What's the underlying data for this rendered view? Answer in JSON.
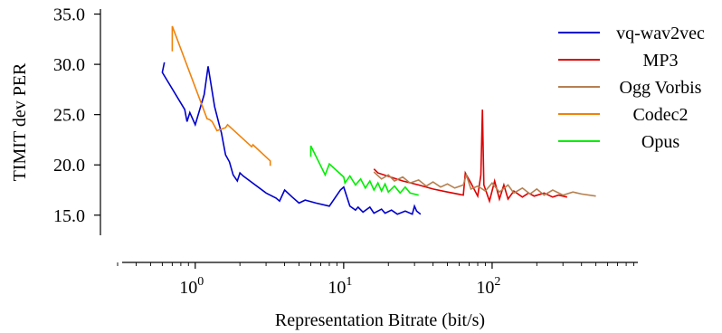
{
  "chart_data": {
    "type": "line",
    "xlabel": "Representation Bitrate (bit/s)",
    "ylabel": "TIMIT dev PER",
    "xscale": "log",
    "xlim": [
      0.3,
      1000
    ],
    "ylim": [
      13.0,
      35.5
    ],
    "grid": false,
    "legend_position": "top-right",
    "yticks": [
      15.0,
      20.0,
      25.0,
      30.0,
      35.0
    ],
    "ytick_labels": [
      "15.0",
      "20.0",
      "25.0",
      "30.0",
      "35.0"
    ],
    "xticks": [
      1,
      10,
      100
    ],
    "xtick_labels": [
      {
        "base": "10",
        "exp": "0"
      },
      {
        "base": "10",
        "exp": "1"
      },
      {
        "base": "10",
        "exp": "2"
      }
    ],
    "series": [
      {
        "name": "vq-wav2vec",
        "color": "#0000cc",
        "points": [
          [
            0.62,
            30.2
          ],
          [
            0.6,
            29.2
          ],
          [
            0.85,
            25.5
          ],
          [
            0.88,
            24.3
          ],
          [
            0.92,
            25.2
          ],
          [
            1.0,
            24.0
          ],
          [
            1.15,
            27.0
          ],
          [
            1.22,
            29.8
          ],
          [
            1.35,
            25.8
          ],
          [
            1.45,
            24.0
          ],
          [
            1.5,
            23.2
          ],
          [
            1.6,
            21.0
          ],
          [
            1.7,
            20.3
          ],
          [
            1.8,
            19.0
          ],
          [
            1.92,
            18.4
          ],
          [
            2.0,
            19.2
          ],
          [
            2.1,
            18.9
          ],
          [
            3.0,
            17.2
          ],
          [
            3.5,
            16.7
          ],
          [
            3.7,
            16.4
          ],
          [
            4.0,
            17.5
          ],
          [
            4.5,
            16.8
          ],
          [
            5.0,
            16.2
          ],
          [
            5.5,
            16.5
          ],
          [
            6.5,
            16.2
          ],
          [
            8.0,
            15.9
          ],
          [
            9.5,
            17.5
          ],
          [
            10.0,
            17.8
          ],
          [
            11.0,
            15.9
          ],
          [
            12.0,
            15.5
          ],
          [
            12.5,
            15.8
          ],
          [
            13.5,
            15.3
          ],
          [
            15.0,
            15.8
          ],
          [
            16.0,
            15.2
          ],
          [
            18.0,
            15.6
          ],
          [
            19.0,
            15.2
          ],
          [
            21.0,
            15.5
          ],
          [
            23.0,
            15.1
          ],
          [
            26.0,
            15.4
          ],
          [
            29.0,
            15.1
          ],
          [
            30.0,
            15.9
          ],
          [
            31.0,
            15.4
          ],
          [
            33.0,
            15.1
          ]
        ]
      },
      {
        "name": "MP3",
        "color": "#dd0000",
        "points": [
          [
            16.0,
            19.6
          ],
          [
            17.0,
            19.2
          ],
          [
            25.0,
            18.4
          ],
          [
            32.0,
            18.0
          ],
          [
            40.0,
            17.6
          ],
          [
            50.0,
            17.3
          ],
          [
            64.0,
            17.0
          ],
          [
            66.0,
            19.2
          ],
          [
            72.0,
            18.2
          ],
          [
            80.0,
            16.9
          ],
          [
            84.0,
            19.0
          ],
          [
            86.0,
            25.5
          ],
          [
            88.0,
            18.0
          ],
          [
            96.0,
            16.4
          ],
          [
            104.0,
            18.4
          ],
          [
            112.0,
            16.6
          ],
          [
            120.0,
            18.0
          ],
          [
            128.0,
            16.6
          ],
          [
            140.0,
            17.4
          ],
          [
            160.0,
            16.8
          ],
          [
            176.0,
            17.2
          ],
          [
            192.0,
            16.9
          ],
          [
            224.0,
            17.2
          ],
          [
            256.0,
            16.8
          ],
          [
            280.0,
            17.0
          ],
          [
            320.0,
            16.8
          ]
        ]
      },
      {
        "name": "Ogg Vorbis",
        "color": "#b58050",
        "points": [
          [
            16.0,
            19.3
          ],
          [
            18.0,
            18.6
          ],
          [
            20.0,
            19.0
          ],
          [
            22.0,
            18.4
          ],
          [
            25.0,
            18.8
          ],
          [
            28.0,
            18.2
          ],
          [
            32.0,
            18.5
          ],
          [
            36.0,
            17.9
          ],
          [
            40.0,
            18.3
          ],
          [
            45.0,
            17.8
          ],
          [
            50.0,
            18.1
          ],
          [
            56.0,
            17.7
          ],
          [
            64.0,
            18.0
          ],
          [
            67.0,
            19.0
          ],
          [
            72.0,
            17.6
          ],
          [
            80.0,
            17.9
          ],
          [
            90.0,
            17.4
          ],
          [
            100.0,
            18.2
          ],
          [
            112.0,
            17.3
          ],
          [
            128.0,
            18.0
          ],
          [
            140.0,
            17.2
          ],
          [
            160.0,
            17.7
          ],
          [
            180.0,
            17.1
          ],
          [
            200.0,
            17.6
          ],
          [
            224.0,
            17.0
          ],
          [
            256.0,
            17.5
          ],
          [
            300.0,
            17.0
          ],
          [
            350.0,
            17.3
          ],
          [
            400.0,
            17.1
          ],
          [
            500.0,
            16.9
          ]
        ]
      },
      {
        "name": "Codec2",
        "color": "#f0820a",
        "points": [
          [
            0.7,
            31.3
          ],
          [
            0.7,
            33.8
          ],
          [
            1.2,
            24.6
          ],
          [
            1.25,
            24.5
          ],
          [
            1.3,
            24.3
          ],
          [
            1.4,
            23.4
          ],
          [
            1.6,
            23.7
          ],
          [
            1.65,
            24.0
          ],
          [
            2.4,
            21.8
          ],
          [
            2.45,
            22.0
          ],
          [
            3.2,
            20.4
          ],
          [
            3.2,
            19.9
          ]
        ]
      },
      {
        "name": "Opus",
        "color": "#00ee00",
        "points": [
          [
            6.0,
            20.8
          ],
          [
            6.0,
            21.9
          ],
          [
            7.5,
            19.0
          ],
          [
            8.0,
            20.1
          ],
          [
            10.0,
            18.8
          ],
          [
            10.2,
            18.2
          ],
          [
            11.0,
            18.9
          ],
          [
            12.0,
            18.0
          ],
          [
            13.0,
            18.6
          ],
          [
            14.0,
            17.7
          ],
          [
            15.0,
            18.4
          ],
          [
            16.0,
            17.5
          ],
          [
            17.0,
            18.2
          ],
          [
            18.0,
            17.4
          ],
          [
            19.0,
            18.1
          ],
          [
            20.0,
            17.3
          ],
          [
            22.0,
            17.9
          ],
          [
            24.0,
            17.2
          ],
          [
            26.0,
            17.8
          ],
          [
            28.0,
            17.2
          ],
          [
            32.0,
            17.0
          ]
        ]
      }
    ]
  }
}
